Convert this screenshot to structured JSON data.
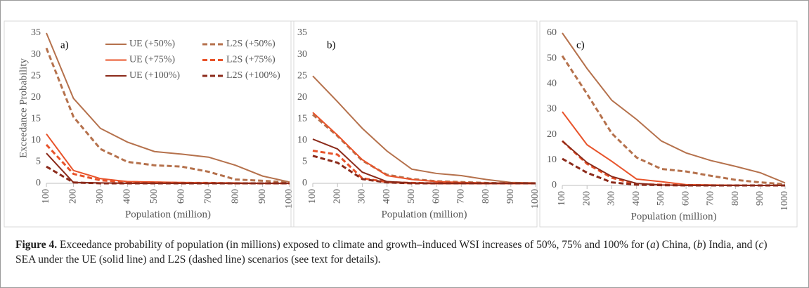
{
  "chart_data": [
    {
      "type": "line",
      "panel_label": "a)",
      "y_label": "Exceedance Probability",
      "x_label": "Population (million)",
      "x": [
        100,
        200,
        300,
        400,
        500,
        600,
        700,
        800,
        900,
        1000
      ],
      "xlim": [
        100,
        1000
      ],
      "xticks": [
        100,
        200,
        300,
        400,
        500,
        600,
        700,
        800,
        900,
        1000
      ],
      "ylim": [
        0,
        35
      ],
      "yticks": [
        0,
        5,
        10,
        15,
        20,
        25,
        30,
        35
      ],
      "legend": "top-right",
      "series": [
        {
          "name": "UE (+50%)",
          "color": "#b5714c",
          "dashed": false,
          "values": [
            35,
            19.8,
            12.8,
            9.6,
            7.4,
            6.8,
            6.1,
            4.2,
            1.7,
            0.3
          ]
        },
        {
          "name": "L2S (+50%)",
          "color": "#b5714c",
          "dashed": true,
          "values": [
            31.5,
            15.5,
            8,
            5,
            4.2,
            3.9,
            2.7,
            0.9,
            0.6,
            0.2
          ]
        },
        {
          "name": "UE (+75%)",
          "color": "#e8532a",
          "dashed": false,
          "values": [
            11.5,
            3,
            1.1,
            0.4,
            0.3,
            0.2,
            0.1,
            0.1,
            0,
            0
          ]
        },
        {
          "name": "L2S (+75%)",
          "color": "#e8532a",
          "dashed": true,
          "values": [
            9,
            2.2,
            0.7,
            0.3,
            0.2,
            0.1,
            0.1,
            0,
            0,
            0
          ]
        },
        {
          "name": "UE (+100%)",
          "color": "#8b2a1a",
          "dashed": false,
          "values": [
            7,
            0.2,
            0.1,
            0,
            0,
            0,
            0,
            0,
            0,
            0
          ]
        },
        {
          "name": "L2S (+100%)",
          "color": "#8b2a1a",
          "dashed": true,
          "values": [
            3.9,
            0.2,
            0,
            0,
            0,
            0,
            0,
            0,
            0,
            0
          ]
        }
      ]
    },
    {
      "type": "line",
      "panel_label": "b)",
      "x_label": "Population (million)",
      "x": [
        100,
        200,
        300,
        400,
        500,
        600,
        700,
        800,
        900,
        1000
      ],
      "xlim": [
        100,
        1000
      ],
      "xticks": [
        100,
        200,
        300,
        400,
        500,
        600,
        700,
        800,
        900,
        1000
      ],
      "ylim": [
        0,
        35
      ],
      "yticks": [
        0,
        5,
        10,
        15,
        20,
        25,
        30,
        35
      ],
      "series": [
        {
          "color": "#b5714c",
          "dashed": false,
          "values": [
            25,
            19,
            12.8,
            7.5,
            3.3,
            2.3,
            1.8,
            0.9,
            0.2,
            0.1
          ]
        },
        {
          "color": "#b5714c",
          "dashed": true,
          "values": [
            16,
            11,
            5.3,
            2,
            1,
            0.5,
            0.3,
            0.1,
            0,
            0
          ]
        },
        {
          "color": "#e8532a",
          "dashed": false,
          "values": [
            16.5,
            11.2,
            5.5,
            1.8,
            0.9,
            0.4,
            0.2,
            0.1,
            0,
            0
          ]
        },
        {
          "color": "#e8532a",
          "dashed": true,
          "values": [
            7.6,
            6.7,
            1.2,
            0.3,
            0.1,
            0,
            0,
            0,
            0,
            0
          ]
        },
        {
          "color": "#8b2a1a",
          "dashed": false,
          "values": [
            10.3,
            8,
            2.6,
            0.4,
            0.1,
            0,
            0,
            0,
            0,
            0
          ]
        },
        {
          "color": "#8b2a1a",
          "dashed": true,
          "values": [
            6.4,
            4.8,
            1,
            0.2,
            0,
            0,
            0,
            0,
            0,
            0
          ]
        }
      ]
    },
    {
      "type": "line",
      "panel_label": "c)",
      "x_label": "Population (million)",
      "x": [
        100,
        200,
        300,
        400,
        500,
        600,
        700,
        800,
        900,
        1000
      ],
      "xlim": [
        100,
        1000
      ],
      "xticks": [
        100,
        200,
        300,
        400,
        500,
        600,
        700,
        800,
        900,
        1000
      ],
      "ylim": [
        0,
        60
      ],
      "yticks": [
        0,
        10,
        20,
        30,
        40,
        50,
        60
      ],
      "series": [
        {
          "color": "#b5714c",
          "dashed": false,
          "values": [
            60,
            46,
            33.5,
            26,
            17.5,
            12.8,
            9.8,
            7.5,
            5,
            1
          ]
        },
        {
          "color": "#b5714c",
          "dashed": true,
          "values": [
            51,
            36,
            20.5,
            11,
            6.5,
            5.5,
            3.8,
            2.2,
            1.2,
            0.5
          ]
        },
        {
          "color": "#e8532a",
          "dashed": false,
          "values": [
            29,
            16,
            9.5,
            2.5,
            1.5,
            0.3,
            0.2,
            0.1,
            0,
            0
          ]
        },
        {
          "color": "#e8532a",
          "dashed": true,
          "values": [
            17.5,
            8.5,
            3,
            0.5,
            0.3,
            0.1,
            0,
            0,
            0,
            0
          ]
        },
        {
          "color": "#8b2a1a",
          "dashed": false,
          "values": [
            17.5,
            9,
            3.5,
            0.8,
            0.2,
            0,
            0,
            0,
            0,
            0
          ]
        },
        {
          "color": "#8b2a1a",
          "dashed": true,
          "values": [
            10.5,
            5,
            1.2,
            0.3,
            0.1,
            0,
            0,
            0,
            0,
            0
          ]
        }
      ]
    }
  ],
  "caption": {
    "label": "Figure 4.",
    "parts": [
      " Exceedance probability of population (in millions) exposed to climate and growth–induced WSI increases of 50%, 75% and 100% for (",
      "a",
      ") China, (",
      "b",
      ") India, and (",
      "c",
      ") SEA under the UE (solid line) and L2S (dashed line) scenarios (see text for details)."
    ]
  }
}
